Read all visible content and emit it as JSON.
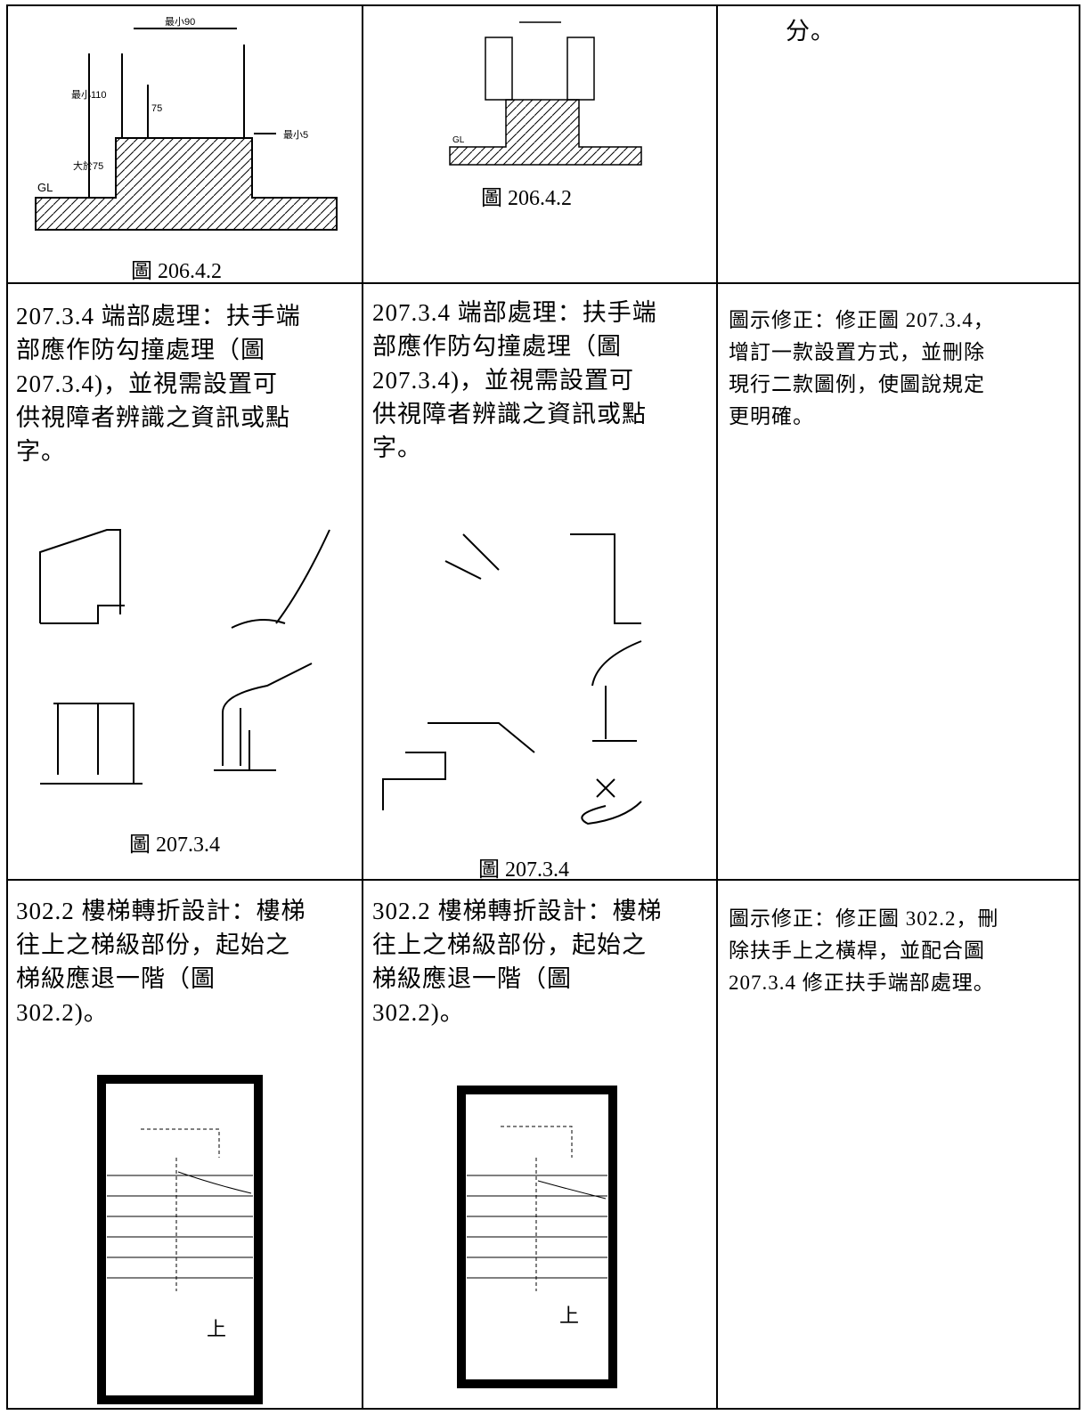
{
  "table": {
    "rows": [
      {
        "cells": [
          {
            "figure": {
              "labels": [
                "最小90",
                "最小110",
                "75",
                "大於75",
                "GL",
                "最小5"
              ],
              "caption": "圖 206.4.2"
            }
          },
          {
            "figure": {
              "labels": [
                "GL"
              ],
              "caption": "圖 206.4.2"
            }
          },
          {
            "lines": [
              "分。"
            ]
          }
        ]
      },
      {
        "cells": [
          {
            "lines": [
              "207.3.4 端部處理：扶手端",
              "部應作防勾撞處理（圖",
              "207.3.4)，並視需設置可",
              "供視障者辨識之資訊或點",
              "字。"
            ],
            "figure": {
              "caption": "圖 207.3.4"
            }
          },
          {
            "lines": [
              "207.3.4 端部處理：扶手端",
              "部應作防勾撞處理（圖",
              "207.3.4)，並視需設置可",
              "供視障者辨識之資訊或點",
              "字。"
            ],
            "figure": {
              "caption": "圖 207.3.4"
            }
          },
          {
            "lines": [
              "圖示修正：修正圖 207.3.4，",
              "增訂一款設置方式，並刪除",
              "現行二款圖例，使圖說規定",
              "更明確。"
            ]
          }
        ]
      },
      {
        "cells": [
          {
            "lines": [
              "302.2 樓梯轉折設計：樓梯",
              "往上之梯級部份，起始之",
              "梯級應退一階（圖",
              "302.2)。"
            ],
            "figure": {
              "labels": [
                "上"
              ]
            }
          },
          {
            "lines": [
              "302.2 樓梯轉折設計：樓梯",
              "往上之梯級部份，起始之",
              "梯級應退一階（圖",
              "302.2)。"
            ],
            "figure": {
              "labels": [
                "上"
              ]
            }
          },
          {
            "lines": [
              "圖示修正：修正圖 302.2，刪",
              "除扶手上之橫桿，並配合圖",
              "207.3.4 修正扶手端部處理。"
            ]
          }
        ]
      }
    ]
  }
}
